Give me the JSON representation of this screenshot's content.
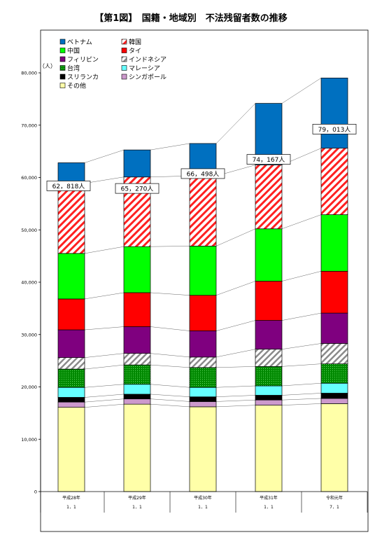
{
  "title": "【第1図】　国籍・地域別　不法残留者数の推移",
  "chart_data": {
    "type": "bar",
    "stacked": true,
    "title": "【第1図】　国籍・地域別　不法残留者数の推移",
    "ylabel": "（人）",
    "ylim": [
      0,
      80000
    ],
    "yticks": [
      0,
      10000,
      20000,
      30000,
      40000,
      50000,
      60000,
      70000,
      80000
    ],
    "ytick_labels": [
      "0",
      "10,000",
      "20,000",
      "30,000",
      "40,000",
      "50,000",
      "60,000",
      "70,000",
      "80,000"
    ],
    "categories": [
      {
        "line1": "平成28年",
        "line2": "1．1"
      },
      {
        "line1": "平成29年",
        "line2": "1．1"
      },
      {
        "line1": "平成30年",
        "line2": "1．1"
      },
      {
        "line1": "平成31年",
        "line2": "1．1"
      },
      {
        "line1": "令和元年",
        "line2": "7．1"
      }
    ],
    "totals": [
      62818,
      65270,
      66498,
      74167,
      79013
    ],
    "total_labels": [
      "62，818人",
      "65，270人",
      "66，498人",
      "74，167人",
      "79，013人"
    ],
    "series": [
      {
        "name": "その他",
        "color": "#ffffa8",
        "pattern": "solid",
        "values": [
          16100,
          16700,
          16200,
          16500,
          16800
        ]
      },
      {
        "name": "シンガポール",
        "color": "#cc99cc",
        "pattern": "solid",
        "values": [
          1000,
          1000,
          1000,
          1000,
          1000
        ]
      },
      {
        "name": "スリランカ",
        "color": "#000000",
        "pattern": "solid",
        "values": [
          900,
          900,
          900,
          900,
          1000
        ]
      },
      {
        "name": "マレーシア",
        "color": "#66ffff",
        "pattern": "solid",
        "values": [
          1900,
          1900,
          1800,
          1800,
          1900
        ]
      },
      {
        "name": "台湾",
        "color": "#009900",
        "pattern": "dots",
        "values": [
          3500,
          3700,
          3800,
          3700,
          3700
        ]
      },
      {
        "name": "インドネシア",
        "color": "#ffffff",
        "pattern": "hatch-gray",
        "values": [
          2200,
          2200,
          2000,
          3300,
          3900
        ]
      },
      {
        "name": "フィリピン",
        "color": "#7f007f",
        "pattern": "solid",
        "values": [
          5300,
          5100,
          5000,
          5500,
          5800
        ]
      },
      {
        "name": "タイ",
        "color": "#ff0000",
        "pattern": "solid",
        "values": [
          5900,
          6500,
          6800,
          7500,
          8000
        ]
      },
      {
        "name": "中国",
        "color": "#00ff00",
        "pattern": "solid",
        "values": [
          8700,
          8800,
          9400,
          10000,
          10800
        ]
      },
      {
        "name": "韓国",
        "color": "#ff0000",
        "pattern": "hatch-red",
        "values": [
          13400,
          13300,
          13400,
          12200,
          12700
        ]
      },
      {
        "name": "ベトナム",
        "color": "#0070c0",
        "pattern": "solid",
        "values": [
          3918,
          5170,
          6198,
          11767,
          13413
        ]
      }
    ],
    "legend": {
      "placement": "top-left",
      "order": [
        "ベトナム",
        "韓国",
        "中国",
        "タイ",
        "フィリピン",
        "インドネシア",
        "台湾",
        "マレーシア",
        "スリランカ",
        "シンガポール",
        "その他"
      ]
    }
  }
}
